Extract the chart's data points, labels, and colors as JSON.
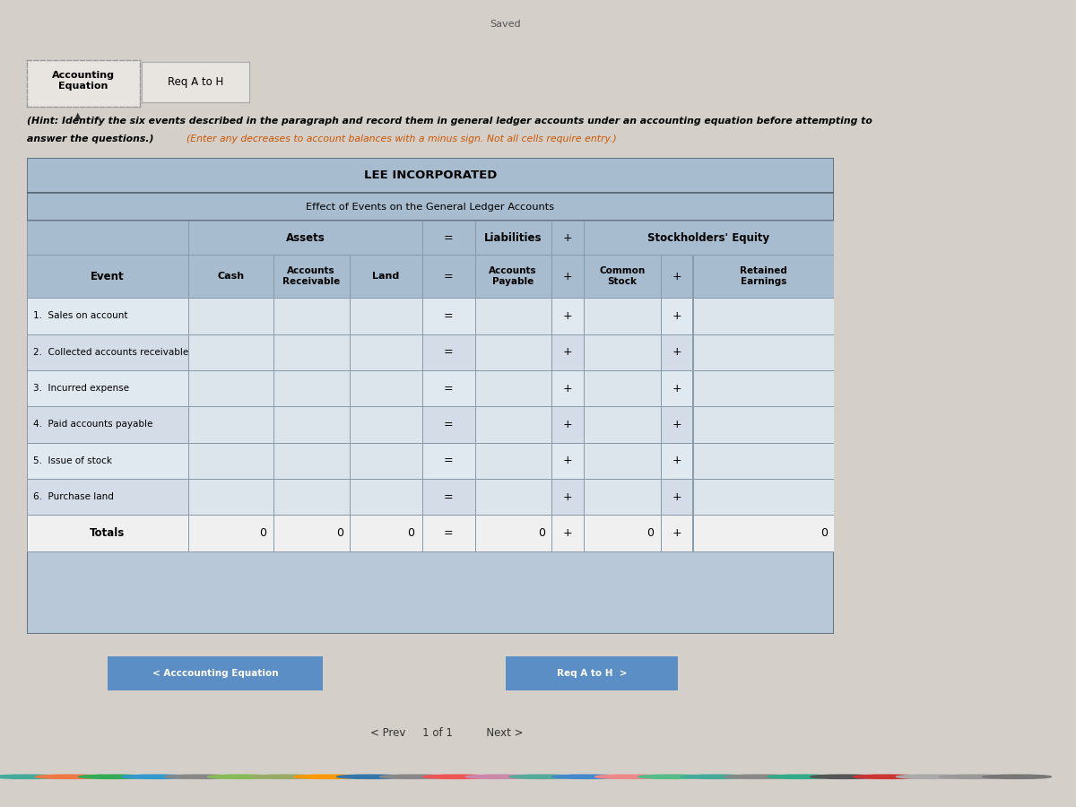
{
  "title": "LEE INCORPORATED",
  "subtitle": "Effect of Events on the General Ledger Accounts",
  "hint_line1": "(Hint: Identify the six events described in the paragraph and record them in general ledger accounts under an accounting equation before attempting to",
  "hint_line2": "answer the questions.) (Enter any decreases to account balances with a minus sign. Not all cells require entry.)",
  "tab1": "Accounting\nEquation",
  "tab2": "Req A to H",
  "saved_text": "Saved",
  "events": [
    "1.  Sales on account",
    "2.  Collected accounts receivable",
    "3.  Incurred expense",
    "4.  Paid accounts payable",
    "5.  Issue of stock",
    "6.  Purchase land"
  ],
  "totals_label": "Totals",
  "nav_left": "< Acccounting Equation",
  "nav_right": "Req A to H  >",
  "nav_page": "< Prev     1 of 1          Next >",
  "bg_top": "#d4cfc8",
  "bg_main": "#c8c4be",
  "table_outer_bg": "#b8c8d8",
  "header_bg": "#a8bcd0",
  "row_bg_even": "#e0e8f0",
  "row_bg_odd": "#d4dce8",
  "input_cell_bg": "#dce4ec",
  "totals_row_bg": "#f0f0f0",
  "nav_btn_bg": "#5b8ec4",
  "nav_btn_text": "#ffffff",
  "border_color": "#8899aa",
  "text_color": "#000000",
  "hint_black": "#000000",
  "hint_orange": "#cc5500",
  "tab_border": "#999999",
  "tab1_bg": "#e8e4e0",
  "tab2_bg": "#e8e4e0",
  "saved_color": "#555555",
  "dock_bg": "#666055"
}
